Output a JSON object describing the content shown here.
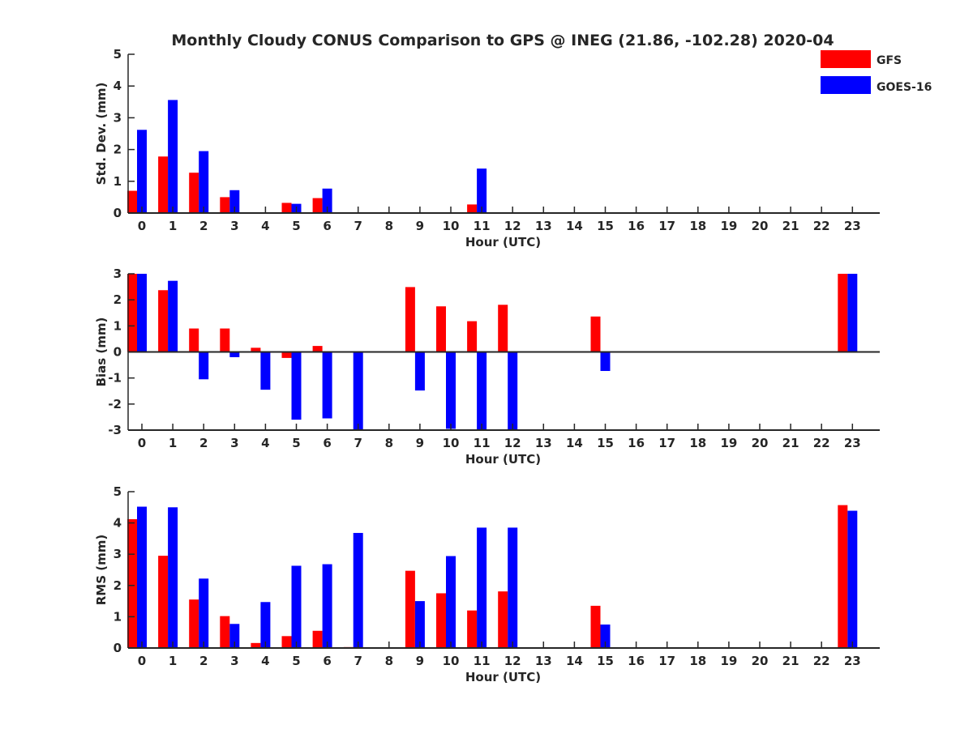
{
  "title": "Monthly Cloudy CONUS Comparison to GPS @ INEG (21.86, -102.28) 2020-04",
  "legend": [
    {
      "name": "GFS",
      "color": "#ff0000"
    },
    {
      "name": "GOES-16",
      "color": "#0000ff"
    }
  ],
  "chart_data": [
    {
      "type": "bar",
      "xlabel": "Hour (UTC)",
      "ylabel": "Std. Dev. (mm)",
      "ylim": [
        0,
        5
      ],
      "yticks": [
        "0",
        "1",
        "2",
        "3",
        "4",
        "5"
      ],
      "categories": [
        "0",
        "1",
        "2",
        "3",
        "4",
        "5",
        "6",
        "7",
        "8",
        "9",
        "10",
        "11",
        "12",
        "13",
        "14",
        "15",
        "16",
        "17",
        "18",
        "19",
        "20",
        "21",
        "22",
        "23"
      ],
      "series": [
        {
          "name": "GFS",
          "color": "#ff0000",
          "values": [
            0.7,
            1.78,
            1.27,
            0.5,
            null,
            0.32,
            0.47,
            null,
            null,
            null,
            null,
            0.27,
            null,
            null,
            null,
            null,
            null,
            null,
            null,
            null,
            null,
            null,
            null,
            null
          ]
        },
        {
          "name": "GOES-16",
          "color": "#0000ff",
          "values": [
            2.62,
            3.56,
            1.95,
            0.72,
            null,
            0.29,
            0.77,
            null,
            null,
            null,
            null,
            1.4,
            null,
            null,
            null,
            null,
            null,
            null,
            null,
            null,
            null,
            null,
            null,
            null
          ]
        }
      ]
    },
    {
      "type": "bar",
      "xlabel": "Hour (UTC)",
      "ylabel": "Bias (mm)",
      "ylim": [
        -3,
        3
      ],
      "yticks": [
        "-3",
        "-2",
        "-1",
        "0",
        "1",
        "2",
        "3"
      ],
      "categories": [
        "0",
        "1",
        "2",
        "3",
        "4",
        "5",
        "6",
        "7",
        "8",
        "9",
        "10",
        "11",
        "12",
        "13",
        "14",
        "15",
        "16",
        "17",
        "18",
        "19",
        "20",
        "21",
        "22",
        "23"
      ],
      "series": [
        {
          "name": "GFS",
          "color": "#ff0000",
          "values": [
            3.0,
            2.37,
            0.9,
            0.9,
            0.16,
            -0.23,
            0.23,
            0.03,
            null,
            2.49,
            1.75,
            1.18,
            1.81,
            null,
            null,
            1.36,
            null,
            null,
            null,
            null,
            null,
            null,
            null,
            3.0
          ]
        },
        {
          "name": "GOES-16",
          "color": "#0000ff",
          "values": [
            3.0,
            2.73,
            -1.05,
            -0.2,
            -1.45,
            -2.6,
            -2.55,
            -3.0,
            null,
            -1.48,
            -2.95,
            -3.0,
            -3.0,
            null,
            null,
            -0.73,
            null,
            null,
            null,
            null,
            null,
            null,
            null,
            3.0
          ]
        }
      ]
    },
    {
      "type": "bar",
      "xlabel": "Hour (UTC)",
      "ylabel": "RMS (mm)",
      "ylim": [
        0,
        5
      ],
      "yticks": [
        "0",
        "1",
        "2",
        "3",
        "4",
        "5"
      ],
      "categories": [
        "0",
        "1",
        "2",
        "3",
        "4",
        "5",
        "6",
        "7",
        "8",
        "9",
        "10",
        "11",
        "12",
        "13",
        "14",
        "15",
        "16",
        "17",
        "18",
        "19",
        "20",
        "21",
        "22",
        "23"
      ],
      "series": [
        {
          "name": "GFS",
          "color": "#ff0000",
          "values": [
            4.12,
            2.95,
            1.55,
            1.02,
            0.16,
            0.38,
            0.55,
            0.03,
            null,
            2.47,
            1.75,
            1.2,
            1.81,
            null,
            null,
            1.35,
            null,
            null,
            null,
            null,
            null,
            null,
            null,
            4.57
          ]
        },
        {
          "name": "GOES-16",
          "color": "#0000ff",
          "values": [
            4.52,
            4.5,
            2.22,
            0.77,
            1.47,
            2.63,
            2.68,
            3.68,
            null,
            1.5,
            2.94,
            3.85,
            3.85,
            null,
            null,
            0.75,
            null,
            null,
            null,
            null,
            null,
            null,
            null,
            4.39
          ]
        }
      ]
    }
  ]
}
